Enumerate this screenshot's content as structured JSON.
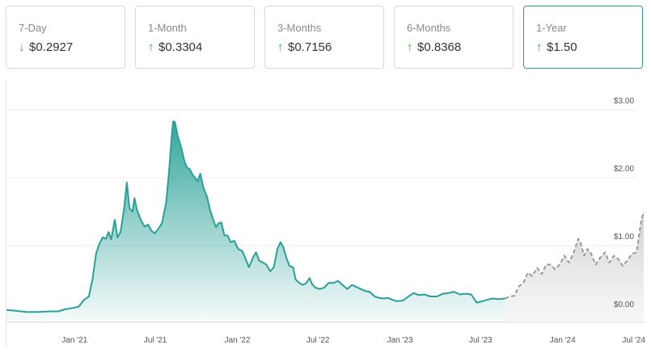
{
  "cards": [
    {
      "label": "7-Day",
      "direction": "down",
      "value": "$0.2927",
      "active": false
    },
    {
      "label": "1-Month",
      "direction": "up",
      "value": "$0.3304",
      "active": false
    },
    {
      "label": "3-Months",
      "direction": "up",
      "value": "$0.7156",
      "active": false
    },
    {
      "label": "6-Months",
      "direction": "up",
      "value": "$0.8368",
      "active": false
    },
    {
      "label": "1-Year",
      "direction": "up",
      "value": "$1.50",
      "active": true
    }
  ],
  "colors": {
    "historical": "#2aa198",
    "forecast": "#9a9a9a",
    "up": "#3fae49",
    "down": "#e06a4a"
  },
  "chart_data": {
    "type": "area",
    "title": "",
    "xlabel": "",
    "ylabel": "",
    "ylim": [
      0,
      3.3
    ],
    "xlim": [
      "2020-08-01",
      "2024-07-01"
    ],
    "grid": true,
    "y_ticks": [
      {
        "value": 0,
        "label": "$0.00"
      },
      {
        "value": 1,
        "label": "$1.00"
      },
      {
        "value": 2,
        "label": "$2.00"
      },
      {
        "value": 3,
        "label": "$3.00"
      }
    ],
    "x_ticks": [
      {
        "date": "2021-01-01",
        "label": "Jan '21"
      },
      {
        "date": "2021-07-01",
        "label": "Jul '21"
      },
      {
        "date": "2022-01-01",
        "label": "Jan '22"
      },
      {
        "date": "2022-07-01",
        "label": "Jul '22"
      },
      {
        "date": "2023-01-01",
        "label": "Jan '23"
      },
      {
        "date": "2023-07-01",
        "label": "Jul '23"
      },
      {
        "date": "2024-01-01",
        "label": "Jan '24"
      },
      {
        "date": "2024-07-01",
        "label": "Jul '24"
      }
    ],
    "series": [
      {
        "style": "historical",
        "points": [
          [
            "2020-08-01",
            0.05
          ],
          [
            "2020-08-20",
            0.04
          ],
          [
            "2020-09-15",
            0.02
          ],
          [
            "2020-10-10",
            0.02
          ],
          [
            "2020-11-05",
            0.03
          ],
          [
            "2020-11-25",
            0.03
          ],
          [
            "2020-12-10",
            0.06
          ],
          [
            "2020-12-28",
            0.08
          ],
          [
            "2021-01-10",
            0.1
          ],
          [
            "2021-01-22",
            0.2
          ],
          [
            "2021-02-02",
            0.25
          ],
          [
            "2021-02-10",
            0.5
          ],
          [
            "2021-02-18",
            0.88
          ],
          [
            "2021-02-25",
            1.02
          ],
          [
            "2021-03-05",
            1.12
          ],
          [
            "2021-03-12",
            1.1
          ],
          [
            "2021-03-18",
            1.2
          ],
          [
            "2021-03-24",
            1.09
          ],
          [
            "2021-04-01",
            1.38
          ],
          [
            "2021-04-07",
            1.12
          ],
          [
            "2021-04-14",
            1.2
          ],
          [
            "2021-04-22",
            1.55
          ],
          [
            "2021-04-28",
            1.93
          ],
          [
            "2021-05-04",
            1.55
          ],
          [
            "2021-05-11",
            1.5
          ],
          [
            "2021-05-15",
            1.7
          ],
          [
            "2021-05-21",
            1.52
          ],
          [
            "2021-05-30",
            1.37
          ],
          [
            "2021-06-07",
            1.28
          ],
          [
            "2021-06-15",
            1.31
          ],
          [
            "2021-06-22",
            1.22
          ],
          [
            "2021-06-30",
            1.18
          ],
          [
            "2021-07-08",
            1.25
          ],
          [
            "2021-07-16",
            1.33
          ],
          [
            "2021-07-25",
            1.62
          ],
          [
            "2021-08-01",
            2.1
          ],
          [
            "2021-08-06",
            2.55
          ],
          [
            "2021-08-10",
            2.83
          ],
          [
            "2021-08-14",
            2.82
          ],
          [
            "2021-08-20",
            2.62
          ],
          [
            "2021-08-28",
            2.45
          ],
          [
            "2021-09-04",
            2.25
          ],
          [
            "2021-09-10",
            2.15
          ],
          [
            "2021-09-16",
            2.13
          ],
          [
            "2021-09-22",
            2.05
          ],
          [
            "2021-09-28",
            2.0
          ],
          [
            "2021-10-04",
            1.95
          ],
          [
            "2021-10-10",
            2.06
          ],
          [
            "2021-10-17",
            1.85
          ],
          [
            "2021-10-25",
            1.72
          ],
          [
            "2021-11-01",
            1.52
          ],
          [
            "2021-11-08",
            1.38
          ],
          [
            "2021-11-14",
            1.27
          ],
          [
            "2021-11-20",
            1.33
          ],
          [
            "2021-11-26",
            1.34
          ],
          [
            "2021-12-03",
            1.15
          ],
          [
            "2021-12-10",
            1.15
          ],
          [
            "2021-12-17",
            1.05
          ],
          [
            "2021-12-25",
            1.07
          ],
          [
            "2022-01-03",
            0.95
          ],
          [
            "2022-01-12",
            0.92
          ],
          [
            "2022-01-20",
            0.8
          ],
          [
            "2022-01-27",
            0.68
          ],
          [
            "2022-02-05",
            0.82
          ],
          [
            "2022-02-12",
            0.9
          ],
          [
            "2022-02-19",
            0.78
          ],
          [
            "2022-02-27",
            0.75
          ],
          [
            "2022-03-07",
            0.72
          ],
          [
            "2022-03-16",
            0.62
          ],
          [
            "2022-03-24",
            0.68
          ],
          [
            "2022-04-01",
            0.95
          ],
          [
            "2022-04-08",
            1.05
          ],
          [
            "2022-04-14",
            0.98
          ],
          [
            "2022-04-21",
            0.82
          ],
          [
            "2022-04-28",
            0.7
          ],
          [
            "2022-05-06",
            0.68
          ],
          [
            "2022-05-12",
            0.5
          ],
          [
            "2022-05-20",
            0.45
          ],
          [
            "2022-05-28",
            0.42
          ],
          [
            "2022-06-05",
            0.45
          ],
          [
            "2022-06-12",
            0.52
          ],
          [
            "2022-06-18",
            0.43
          ],
          [
            "2022-06-25",
            0.38
          ],
          [
            "2022-07-05",
            0.36
          ],
          [
            "2022-07-15",
            0.38
          ],
          [
            "2022-07-25",
            0.45
          ],
          [
            "2022-08-05",
            0.45
          ],
          [
            "2022-08-15",
            0.48
          ],
          [
            "2022-08-25",
            0.42
          ],
          [
            "2022-09-05",
            0.36
          ],
          [
            "2022-09-15",
            0.42
          ],
          [
            "2022-09-25",
            0.39
          ],
          [
            "2022-10-05",
            0.36
          ],
          [
            "2022-10-15",
            0.33
          ],
          [
            "2022-10-25",
            0.32
          ],
          [
            "2022-11-05",
            0.25
          ],
          [
            "2022-11-15",
            0.23
          ],
          [
            "2022-11-25",
            0.22
          ],
          [
            "2022-12-05",
            0.23
          ],
          [
            "2022-12-15",
            0.2
          ],
          [
            "2022-12-25",
            0.18
          ],
          [
            "2023-01-08",
            0.19
          ],
          [
            "2023-01-20",
            0.25
          ],
          [
            "2023-02-01",
            0.3
          ],
          [
            "2023-02-12",
            0.27
          ],
          [
            "2023-02-25",
            0.28
          ],
          [
            "2023-03-10",
            0.25
          ],
          [
            "2023-03-25",
            0.25
          ],
          [
            "2023-04-08",
            0.29
          ],
          [
            "2023-04-20",
            0.3
          ],
          [
            "2023-05-02",
            0.32
          ],
          [
            "2023-05-15",
            0.28
          ],
          [
            "2023-05-28",
            0.29
          ],
          [
            "2023-06-10",
            0.28
          ],
          [
            "2023-06-22",
            0.16
          ],
          [
            "2023-07-05",
            0.18
          ],
          [
            "2023-07-15",
            0.2
          ],
          [
            "2023-07-28",
            0.22
          ],
          [
            "2023-08-10",
            0.21
          ],
          [
            "2023-08-25",
            0.22
          ]
        ]
      },
      {
        "style": "forecast",
        "points": [
          [
            "2023-08-25",
            0.22
          ],
          [
            "2023-09-05",
            0.25
          ],
          [
            "2023-09-15",
            0.26
          ],
          [
            "2023-09-25",
            0.4
          ],
          [
            "2023-10-05",
            0.45
          ],
          [
            "2023-10-15",
            0.6
          ],
          [
            "2023-10-25",
            0.55
          ],
          [
            "2023-11-05",
            0.67
          ],
          [
            "2023-11-15",
            0.58
          ],
          [
            "2023-11-25",
            0.72
          ],
          [
            "2023-12-05",
            0.72
          ],
          [
            "2023-12-15",
            0.65
          ],
          [
            "2023-12-25",
            0.72
          ],
          [
            "2024-01-05",
            0.85
          ],
          [
            "2024-01-15",
            0.75
          ],
          [
            "2024-01-25",
            0.88
          ],
          [
            "2024-02-05",
            1.1
          ],
          [
            "2024-02-10",
            1.05
          ],
          [
            "2024-02-18",
            0.85
          ],
          [
            "2024-02-26",
            0.95
          ],
          [
            "2024-03-05",
            0.88
          ],
          [
            "2024-03-15",
            0.72
          ],
          [
            "2024-03-25",
            0.82
          ],
          [
            "2024-04-05",
            0.9
          ],
          [
            "2024-04-15",
            0.75
          ],
          [
            "2024-04-25",
            0.85
          ],
          [
            "2024-05-05",
            0.8
          ],
          [
            "2024-05-15",
            0.7
          ],
          [
            "2024-05-25",
            0.78
          ],
          [
            "2024-06-05",
            0.88
          ],
          [
            "2024-06-15",
            0.9
          ],
          [
            "2024-06-25",
            1.35
          ],
          [
            "2024-07-01",
            1.5
          ]
        ]
      }
    ]
  }
}
